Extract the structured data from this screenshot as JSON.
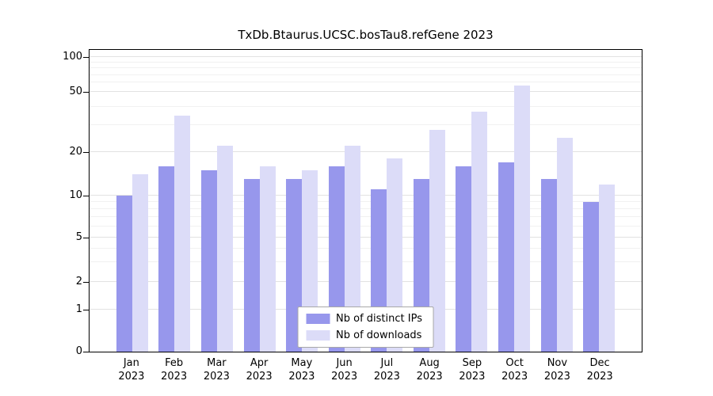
{
  "chart_data": {
    "type": "bar",
    "title": "TxDb.Btaurus.UCSC.bosTau8.refGene 2023",
    "categories": [
      "Jan 2023",
      "Feb 2023",
      "Mar 2023",
      "Apr 2023",
      "May 2023",
      "Jun 2023",
      "Jul 2023",
      "Aug 2023",
      "Sep 2023",
      "Oct 2023",
      "Nov 2023",
      "Dec 2023"
    ],
    "series": [
      {
        "name": "Nb of distinct IPs",
        "color": "#9797ec",
        "values": [
          10,
          16,
          15,
          13,
          13,
          16,
          11,
          13,
          16,
          17,
          13,
          9
        ]
      },
      {
        "name": "Nb of downloads",
        "color": "#dcdcf8",
        "values": [
          14,
          35,
          22,
          16,
          15,
          22,
          18,
          28,
          37,
          57,
          25,
          12
        ]
      }
    ],
    "y_axis": {
      "scale": "log",
      "ticks": [
        0,
        1,
        2,
        5,
        10,
        20,
        50,
        100
      ],
      "tick_labels": [
        "0",
        "1",
        "2",
        "5",
        "10",
        "20",
        "50",
        "100"
      ],
      "minor_ticks": [
        3,
        4,
        6,
        7,
        8,
        9,
        30,
        40,
        60,
        70,
        80,
        90
      ],
      "ylim": [
        0,
        100
      ]
    },
    "xlabel": "",
    "ylabel": "",
    "grid": true,
    "legend_position": "bottom-center"
  },
  "legend": {
    "items": [
      {
        "label": "Nb of distinct IPs"
      },
      {
        "label": "Nb of downloads"
      }
    ]
  }
}
